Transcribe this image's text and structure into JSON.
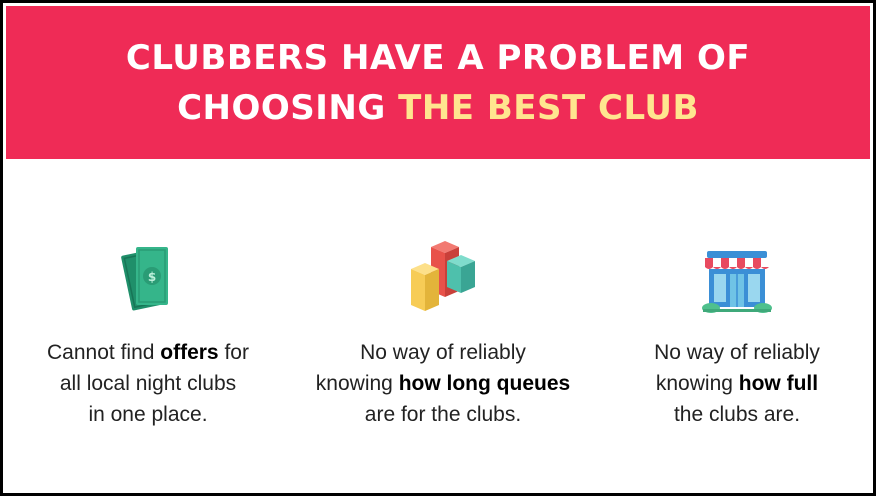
{
  "header": {
    "title_line1": "CLUBBERS HAVE A PROBLEM OF",
    "title_line2_pre": "CHOOSING ",
    "title_line2_highlight": "THE BEST CLUB"
  },
  "features": [
    {
      "icon": "money-icon",
      "line1_pre": "Cannot find ",
      "line1_bold": "offers",
      "line1_post": " for",
      "line2": "all local night clubs",
      "line3": "in one place."
    },
    {
      "icon": "bar-chart-icon",
      "line1": "No way of reliably",
      "line2_pre": "knowing ",
      "line2_bold": "how long queues",
      "line3": "are for the clubs."
    },
    {
      "icon": "club-building-icon",
      "line1": "No way of reliably",
      "line2_pre": "knowing ",
      "line2_bold": "how full",
      "line3": "the clubs are."
    }
  ],
  "colors": {
    "header_bg": "#ef2b56",
    "header_text": "#ffffff",
    "highlight": "#ffe58f"
  }
}
